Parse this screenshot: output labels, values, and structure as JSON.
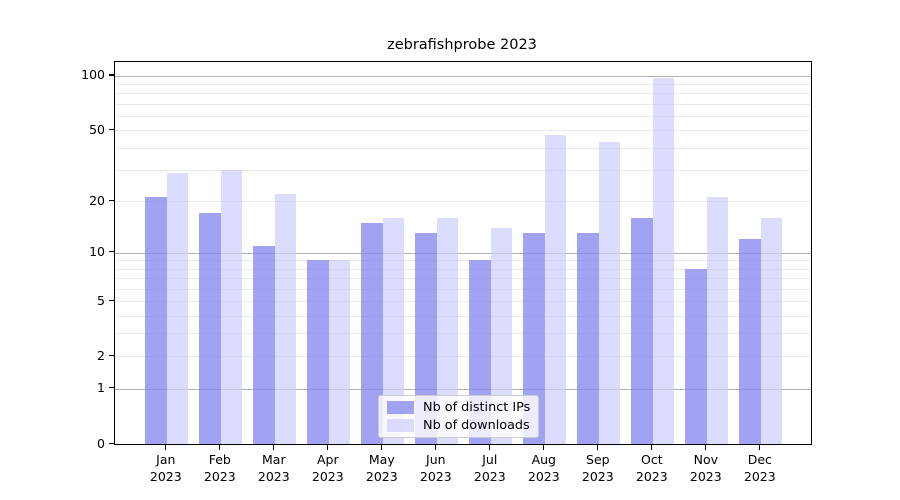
{
  "background_color": "#ffffff",
  "axis_color": "#000000",
  "chart_data": {
    "type": "bar",
    "title": "zebrafishprobe 2023",
    "categories": [
      "Jan 2023",
      "Feb 2023",
      "Mar 2023",
      "Apr 2023",
      "May 2023",
      "Jun 2023",
      "Jul 2023",
      "Aug 2023",
      "Sep 2023",
      "Oct 2023",
      "Nov 2023",
      "Dec 2023"
    ],
    "series": [
      {
        "name": "Nb of distinct IPs",
        "color": "#8888ee",
        "alpha": 0.78,
        "values": [
          21,
          17,
          11,
          9,
          15,
          13,
          9,
          13,
          13,
          16,
          8,
          12
        ]
      },
      {
        "name": "Nb of downloads",
        "color": "#ccccff",
        "alpha": 0.69,
        "values": [
          29,
          30,
          22,
          9,
          16,
          16,
          14,
          47,
          43,
          97,
          21,
          16
        ]
      }
    ],
    "xlabel": "",
    "ylabel": "",
    "yscale": "log1p",
    "ylim": [
      0,
      119
    ],
    "yticks": [
      0,
      1,
      2,
      5,
      10,
      20,
      50,
      100
    ],
    "grid": {
      "major_values": [
        1,
        10,
        100
      ],
      "minor_values": [
        2,
        3,
        4,
        5,
        6,
        7,
        8,
        9,
        20,
        30,
        40,
        50,
        60,
        70,
        80,
        90
      ],
      "major_color": "#b0b0b0",
      "minor_color": "#e9e9e9"
    },
    "legend_position": "lower center"
  }
}
